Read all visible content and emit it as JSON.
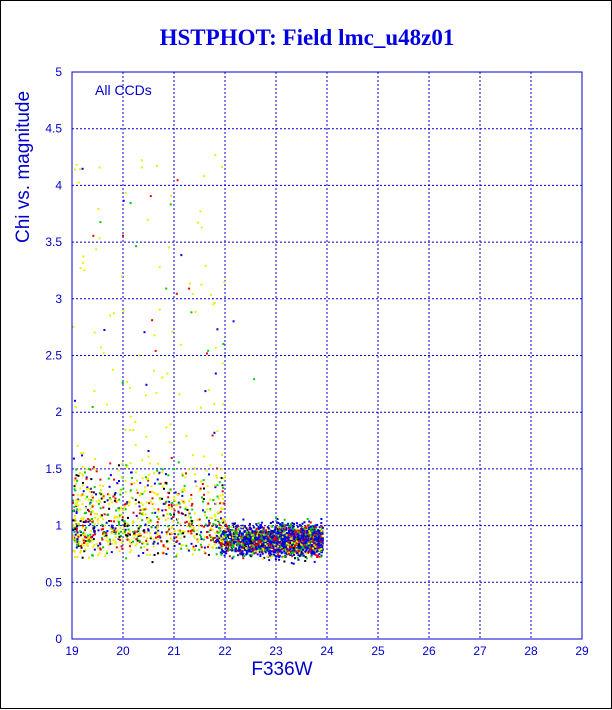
{
  "chart_data": {
    "type": "scatter",
    "title": "HSTPHOT: Field lmc_u48z01",
    "xlabel": "F336W",
    "ylabel": "Chi vs. magnitude",
    "annotation": "All CCDs",
    "xlim": [
      19,
      29
    ],
    "ylim": [
      0,
      5
    ],
    "xticks": [
      19,
      20,
      21,
      22,
      23,
      24,
      25,
      26,
      27,
      28,
      29
    ],
    "yticks": [
      0,
      0.5,
      1,
      1.5,
      2,
      2.5,
      3,
      3.5,
      4,
      4.5,
      5
    ],
    "grid": true,
    "series_colors": [
      "#0000ee",
      "#00cc00",
      "#ee0000",
      "#eeee00",
      "#000000"
    ],
    "distribution": {
      "x_range": [
        19.0,
        23.9
      ],
      "core": {
        "x": [
          21.8,
          23.9
        ],
        "y": [
          0.55,
          1.25
        ],
        "peak_y": 0.88
      },
      "tail": {
        "x": [
          19.0,
          22.0
        ],
        "y": [
          1.2,
          4.3
        ]
      }
    },
    "outliers": [
      {
        "x": 19.15,
        "y": 3.28,
        "color": "#eeee00"
      },
      {
        "x": 19.5,
        "y": 3.8,
        "color": "#eeee00"
      },
      {
        "x": 19.8,
        "y": 2.88,
        "color": "#eeee00"
      },
      {
        "x": 20.3,
        "y": 2.51,
        "color": "#eeee00"
      },
      {
        "x": 20.55,
        "y": 2.82,
        "color": "#ee0000"
      },
      {
        "x": 20.65,
        "y": 4.18,
        "color": "#eeee00"
      },
      {
        "x": 20.95,
        "y": 2.72,
        "color": "#eeee00"
      },
      {
        "x": 21.35,
        "y": 3.05,
        "color": "#eeee00"
      },
      {
        "x": 21.45,
        "y": 3.68,
        "color": "#eeee00"
      },
      {
        "x": 21.5,
        "y": 3.78,
        "color": "#eeee00"
      },
      {
        "x": 21.6,
        "y": 3.3,
        "color": "#eeee00"
      },
      {
        "x": 21.75,
        "y": 2.96,
        "color": "#eeee00"
      },
      {
        "x": 22.15,
        "y": 2.81,
        "color": "#0000ee"
      },
      {
        "x": 21.8,
        "y": 2.35,
        "color": "#0000ee"
      },
      {
        "x": 21.65,
        "y": 2.55,
        "color": "#00cc00"
      },
      {
        "x": 21.95,
        "y": 2.61,
        "color": "#00cc00"
      },
      {
        "x": 20.85,
        "y": 2.35,
        "color": "#eeee00"
      },
      {
        "x": 19.55,
        "y": 2.58,
        "color": "#eeee00"
      },
      {
        "x": 22.55,
        "y": 2.3,
        "color": "#00cc00"
      }
    ]
  }
}
